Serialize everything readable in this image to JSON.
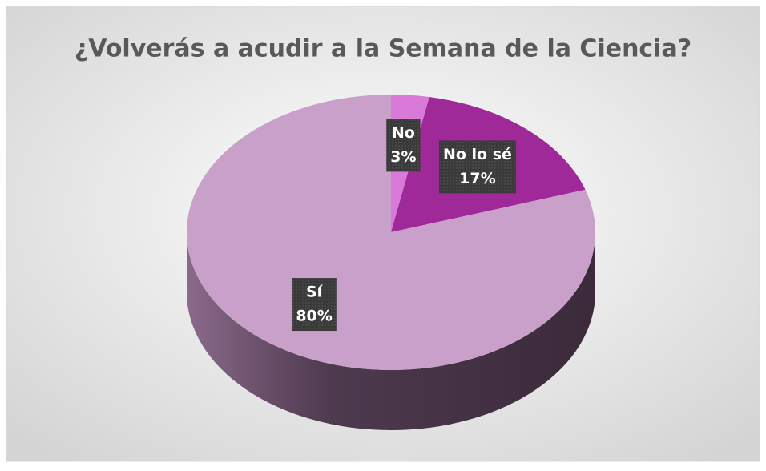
{
  "chart_data": {
    "type": "pie",
    "title": "¿Volverás a acudir a la Semana de la Ciencia?",
    "categories": [
      "No",
      "No lo sé",
      "Sí"
    ],
    "values": [
      3,
      17,
      80
    ],
    "value_labels": [
      "3%",
      "17%",
      "80%"
    ],
    "colors": [
      "#d97ad9",
      "#a0299a",
      "#c9a0c9"
    ]
  }
}
